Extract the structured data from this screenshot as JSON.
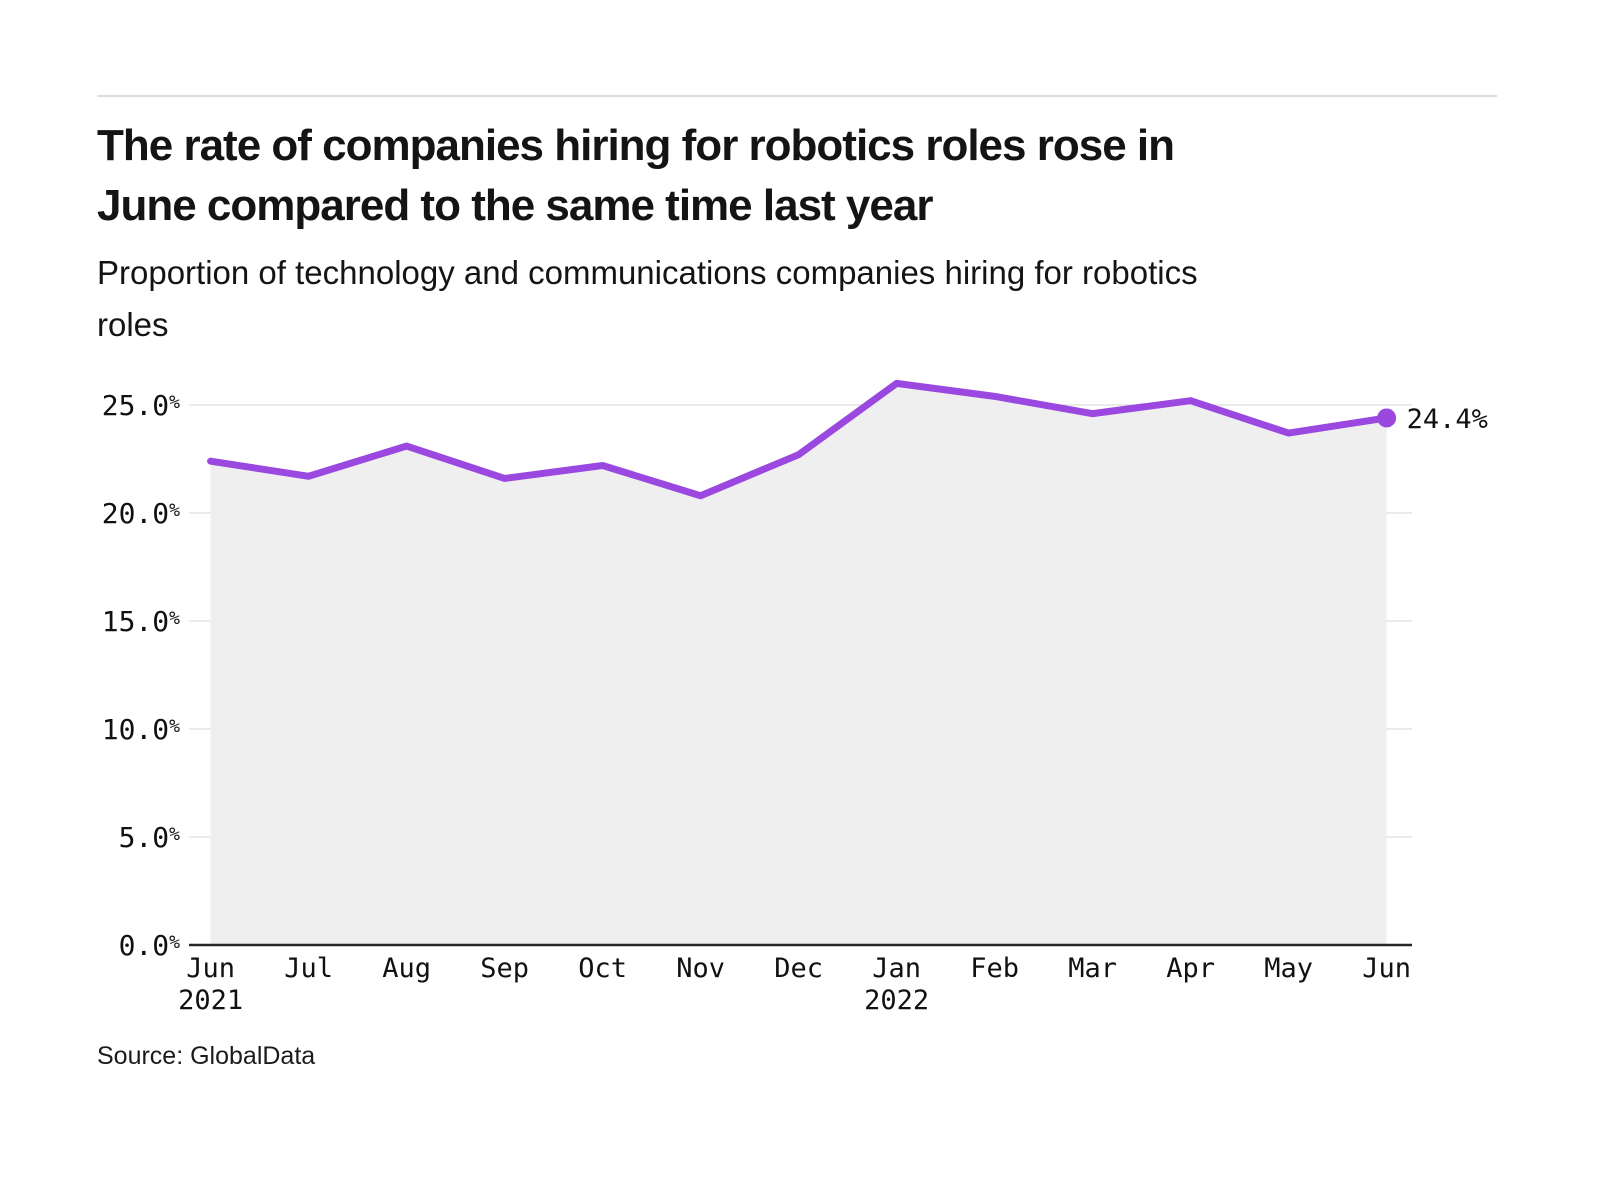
{
  "header": {
    "title_lines": [
      "The rate of companies hiring for robotics roles rose in",
      "June compared to the same time last year"
    ],
    "subtitle_lines": [
      "Proportion of technology and communications companies hiring for robotics",
      "roles"
    ]
  },
  "source": "Source: GlobalData",
  "chart_data": {
    "type": "line",
    "title": "Proportion of technology and communications companies hiring for robotics roles",
    "x_labels": [
      "Jun",
      "Jul",
      "Aug",
      "Sep",
      "Oct",
      "Nov",
      "Dec",
      "Jan",
      "Feb",
      "Mar",
      "Apr",
      "May",
      "Jun"
    ],
    "x_year_labels": [
      {
        "index": 0,
        "label": "2021"
      },
      {
        "index": 7,
        "label": "2022"
      }
    ],
    "values": [
      22.4,
      21.7,
      23.1,
      21.6,
      22.2,
      20.8,
      22.7,
      26.0,
      25.4,
      24.6,
      25.2,
      23.7,
      24.4
    ],
    "unit": "%",
    "ylim": [
      0,
      25
    ],
    "ytick_step": 5,
    "ytick_labels": [
      "0.0%",
      "5.0%",
      "10.0%",
      "15.0%",
      "20.0%",
      "25.0%"
    ],
    "end_point_label": "24.4%",
    "grid_on": true,
    "legend": "none",
    "colors": {
      "line": "#9a48df",
      "end_dot": "#9a48df",
      "area_fill": "#efefef",
      "grid": "#e3e3e3",
      "axis": "#262626",
      "tick_text": "#111111"
    }
  }
}
